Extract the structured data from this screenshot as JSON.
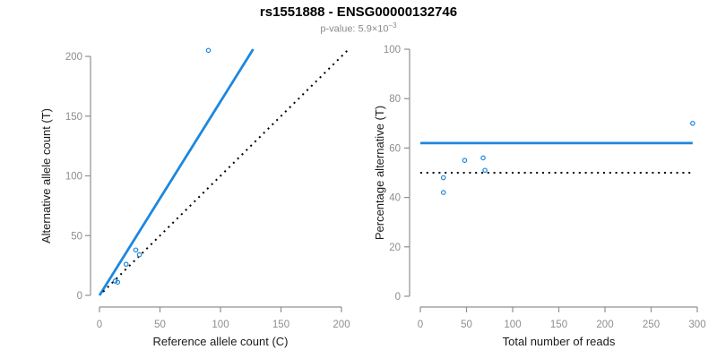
{
  "header": {
    "title": "rs1551888 - ENSG00000132746",
    "subtitle_prefix": "p-value: 5.9×10",
    "subtitle_exponent": "−3"
  },
  "colors": {
    "accent_blue": "#1E87DD",
    "axis": "#909090",
    "tick_label": "#8E8E8E",
    "axis_title": "#1A1A1A",
    "dotted_line": "#000000",
    "title": "#000000",
    "subtitle": "#8A8A8A",
    "background": "#FFFFFF"
  },
  "chart_data": [
    {
      "type": "scatter",
      "panel": "allele-counts",
      "xlabel": "Reference allele count (C)",
      "ylabel": "Alternative allele count (T)",
      "xlim": [
        0,
        200
      ],
      "ylim": [
        0,
        200
      ],
      "xticks": [
        0,
        50,
        100,
        150,
        200
      ],
      "yticks": [
        0,
        50,
        100,
        150,
        200
      ],
      "grid": false,
      "legend": null,
      "points": [
        [
          13,
          12
        ],
        [
          15,
          11
        ],
        [
          22,
          26
        ],
        [
          30,
          38
        ],
        [
          33,
          34
        ],
        [
          90,
          205
        ]
      ],
      "fit_line": {
        "style": "solid",
        "x1": 0,
        "y1": 0,
        "x2": 127,
        "y2": 206,
        "slope": 1.62
      },
      "reference_line": {
        "style": "dotted",
        "x1": 3,
        "y1": 3,
        "x2": 207,
        "y2": 207,
        "meaning": "identity y=x"
      }
    },
    {
      "type": "scatter",
      "panel": "percentage-alternative",
      "xlabel": "Total number of reads",
      "ylabel": "Percentage alternative (T)",
      "xlim": [
        0,
        300
      ],
      "ylim": [
        0,
        100
      ],
      "xticks": [
        0,
        50,
        100,
        150,
        200,
        250,
        300
      ],
      "yticks": [
        0,
        20,
        40,
        60,
        80,
        100
      ],
      "grid": false,
      "legend": null,
      "points": [
        [
          25,
          48
        ],
        [
          25,
          42
        ],
        [
          48,
          55
        ],
        [
          68,
          56
        ],
        [
          70,
          51
        ],
        [
          295,
          70
        ]
      ],
      "fit_line": {
        "style": "solid",
        "y": 62,
        "x1": 0,
        "x2": 295
      },
      "reference_line": {
        "style": "dotted",
        "y": 50,
        "x1": 0,
        "x2": 297,
        "meaning": "null 50%"
      }
    }
  ]
}
